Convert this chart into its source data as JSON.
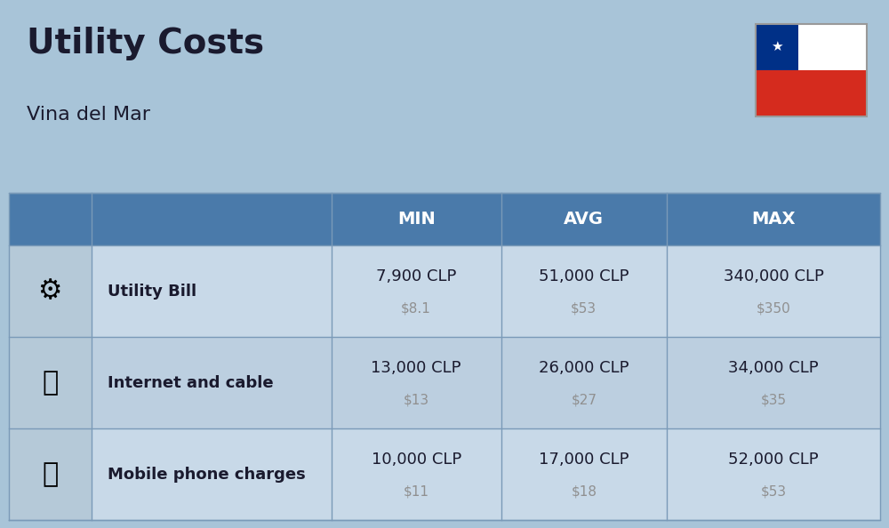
{
  "title": "Utility Costs",
  "subtitle": "Vina del Mar",
  "background_color": "#a8c4d8",
  "header_color": "#4a7aaa",
  "header_text_color": "#ffffff",
  "row_color_1": "#c8d9e8",
  "row_color_2": "#bccfe0",
  "icon_col_color": "#b5c9d8",
  "divider_color": "#7a9ab8",
  "main_text_color": "#1a1a2e",
  "sub_text_color": "#909090",
  "bold_label_color": "#1a1a2e",
  "flag_white": "#ffffff",
  "flag_red": "#d52b1e",
  "flag_blue": "#003087",
  "col_starts_rel": [
    0.0,
    0.095,
    0.37,
    0.565,
    0.755
  ],
  "col_ends_rel": [
    0.095,
    0.37,
    0.565,
    0.755,
    1.0
  ],
  "rows": [
    {
      "label": "Utility Bill",
      "min_clp": "7,900 CLP",
      "min_usd": "$8.1",
      "avg_clp": "51,000 CLP",
      "avg_usd": "$53",
      "max_clp": "340,000 CLP",
      "max_usd": "$350"
    },
    {
      "label": "Internet and cable",
      "min_clp": "13,000 CLP",
      "min_usd": "$13",
      "avg_clp": "26,000 CLP",
      "avg_usd": "$27",
      "max_clp": "34,000 CLP",
      "max_usd": "$35"
    },
    {
      "label": "Mobile phone charges",
      "min_clp": "10,000 CLP",
      "min_usd": "$11",
      "avg_clp": "17,000 CLP",
      "avg_usd": "$18",
      "max_clp": "52,000 CLP",
      "max_usd": "$53"
    }
  ]
}
